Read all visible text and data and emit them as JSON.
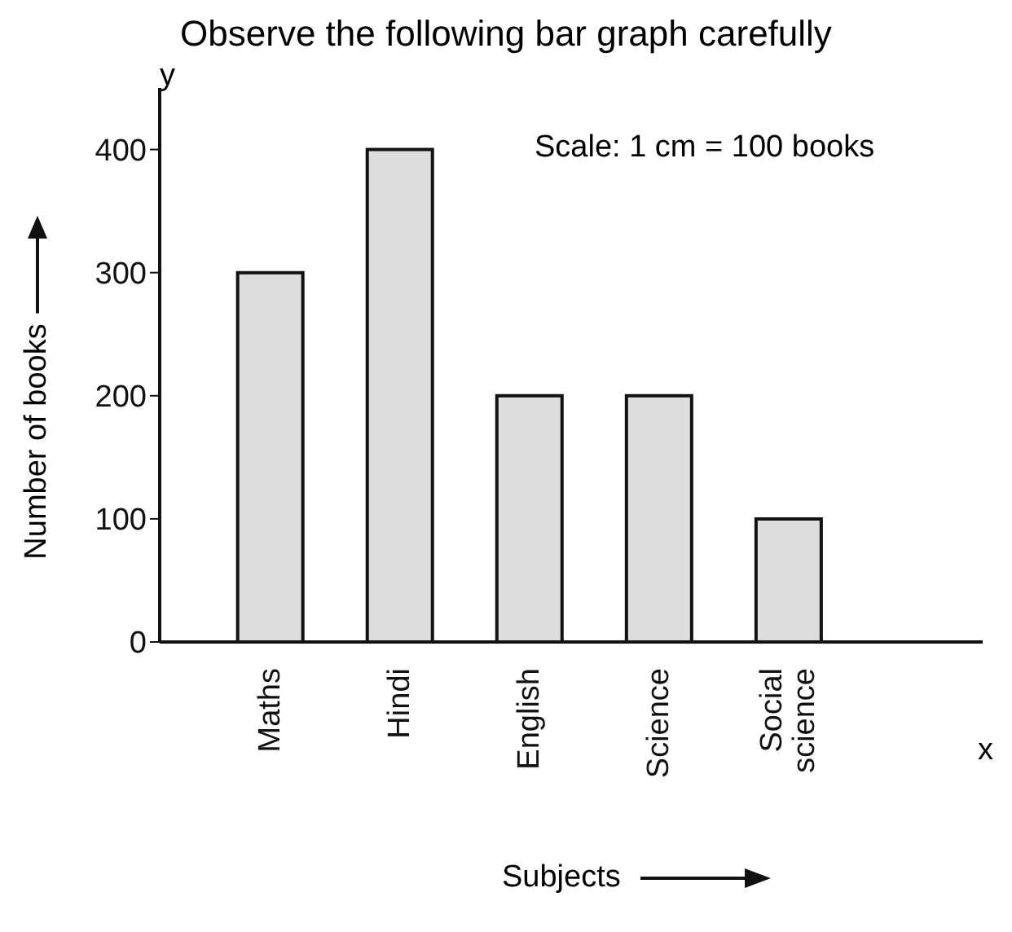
{
  "chart_data": {
    "type": "bar",
    "title": "Observe the following bar graph carefully",
    "xlabel": "Subjects",
    "ylabel": "Number of books",
    "annotations": [
      "Scale: 1 cm = 100 books",
      "x",
      "y"
    ],
    "categories": [
      "Maths",
      "Hindi",
      "English",
      "Science",
      "Social science"
    ],
    "values": [
      300,
      400,
      200,
      200,
      100
    ],
    "color": "#dddddd",
    "ylim": [
      0,
      450
    ],
    "yticks": [
      0,
      100,
      200,
      300,
      400
    ],
    "grid": false
  }
}
